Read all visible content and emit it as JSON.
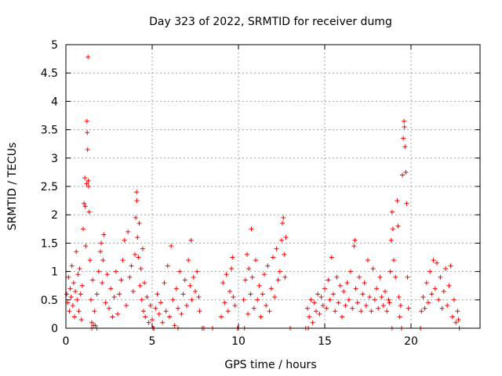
{
  "chart_data": {
    "type": "scatter",
    "title": "Day 323 of 2022, SRMTID for receiver dumg",
    "xlabel": "GPS time / hours",
    "ylabel": "SRMTID / TECUs",
    "xlim": [
      0,
      24
    ],
    "ylim": [
      0,
      5
    ],
    "x_ticks": [
      0,
      5,
      10,
      15,
      20
    ],
    "y_ticks": [
      0,
      0.5,
      1,
      1.5,
      2,
      2.5,
      3,
      3.5,
      4,
      4.5,
      5
    ],
    "grid": true,
    "marker": "plus",
    "point_color": "#ff0000",
    "series": [
      {
        "points": [
          [
            0.05,
            0.6
          ],
          [
            0.1,
            0.45
          ],
          [
            0.15,
            0.9
          ],
          [
            0.2,
            0.3
          ],
          [
            0.25,
            0.7
          ],
          [
            0.3,
            0.55
          ],
          [
            0.35,
            1.1
          ],
          [
            0.4,
            0.4
          ],
          [
            0.45,
            0.8
          ],
          [
            0.5,
            0.2
          ],
          [
            0.55,
            0.65
          ],
          [
            0.6,
            1.35
          ],
          [
            0.65,
            0.5
          ],
          [
            0.7,
            0.95
          ],
          [
            0.75,
            0.3
          ],
          [
            0.8,
            1.05
          ],
          [
            0.85,
            0.6
          ],
          [
            0.9,
            0.15
          ],
          [
            0.95,
            0.75
          ],
          [
            1.0,
            1.75
          ],
          [
            1.05,
            2.2
          ],
          [
            1.1,
            2.65
          ],
          [
            1.12,
            2.15
          ],
          [
            1.15,
            1.45
          ],
          [
            1.2,
            2.55
          ],
          [
            1.22,
            3.65
          ],
          [
            1.24,
            3.45
          ],
          [
            1.26,
            3.15
          ],
          [
            1.28,
            4.78
          ],
          [
            1.3,
            2.6
          ],
          [
            1.32,
            2.5
          ],
          [
            1.35,
            2.05
          ],
          [
            1.4,
            1.2
          ],
          [
            1.45,
            0.5
          ],
          [
            1.5,
            0.1
          ],
          [
            1.55,
            0.85
          ],
          [
            1.6,
            0.05
          ],
          [
            1.65,
            0.3
          ],
          [
            1.7,
            0.05
          ],
          [
            1.8,
            0.6
          ],
          [
            1.9,
            1.0
          ],
          [
            2.0,
            1.35
          ],
          [
            2.05,
            1.5
          ],
          [
            2.1,
            0.8
          ],
          [
            2.15,
            1.2
          ],
          [
            2.2,
            1.65
          ],
          [
            2.3,
            0.45
          ],
          [
            2.4,
            0.95
          ],
          [
            2.5,
            0.35
          ],
          [
            2.6,
            0.7
          ],
          [
            2.7,
            0.2
          ],
          [
            2.8,
            0.55
          ],
          [
            2.9,
            1.0
          ],
          [
            3.0,
            0.25
          ],
          [
            3.1,
            0.6
          ],
          [
            3.2,
            0.85
          ],
          [
            3.3,
            1.2
          ],
          [
            3.4,
            1.55
          ],
          [
            3.5,
            0.4
          ],
          [
            3.6,
            1.7
          ],
          [
            3.7,
            0.9
          ],
          [
            3.8,
            1.1
          ],
          [
            3.9,
            0.65
          ],
          [
            4.0,
            1.3
          ],
          [
            4.05,
            1.95
          ],
          [
            4.1,
            2.4
          ],
          [
            4.12,
            2.25
          ],
          [
            4.15,
            1.6
          ],
          [
            4.2,
            1.25
          ],
          [
            4.25,
            1.85
          ],
          [
            4.3,
            0.75
          ],
          [
            4.35,
            1.05
          ],
          [
            4.4,
            0.5
          ],
          [
            4.45,
            1.4
          ],
          [
            4.5,
            0.3
          ],
          [
            4.55,
            0.8
          ],
          [
            4.6,
            0.2
          ],
          [
            4.7,
            0.55
          ],
          [
            4.8,
            0.1
          ],
          [
            4.9,
            0.4
          ],
          [
            5.0,
            0.15
          ],
          [
            5.1,
            0.0
          ],
          [
            5.2,
            0.35
          ],
          [
            5.3,
            0.6
          ],
          [
            5.4,
            0.25
          ],
          [
            5.5,
            0.45
          ],
          [
            5.6,
            0.1
          ],
          [
            5.7,
            0.8
          ],
          [
            5.8,
            0.3
          ],
          [
            5.9,
            1.1
          ],
          [
            6.0,
            0.2
          ],
          [
            6.1,
            1.45
          ],
          [
            6.2,
            0.5
          ],
          [
            6.3,
            0.05
          ],
          [
            6.4,
            0.7
          ],
          [
            6.5,
            0.35
          ],
          [
            6.6,
            1.0
          ],
          [
            6.7,
            0.25
          ],
          [
            6.8,
            0.6
          ],
          [
            6.9,
            0.85
          ],
          [
            7.0,
            0.4
          ],
          [
            7.1,
            1.2
          ],
          [
            7.2,
            0.75
          ],
          [
            7.25,
            1.55
          ],
          [
            7.3,
            0.5
          ],
          [
            7.4,
            0.9
          ],
          [
            7.5,
            0.65
          ],
          [
            7.6,
            1.0
          ],
          [
            7.7,
            0.55
          ],
          [
            7.75,
            0.3
          ],
          [
            9.0,
            0.2
          ],
          [
            9.1,
            0.8
          ],
          [
            9.2,
            0.45
          ],
          [
            9.3,
            0.95
          ],
          [
            9.4,
            0.3
          ],
          [
            9.5,
            0.65
          ],
          [
            9.6,
            1.05
          ],
          [
            9.65,
            1.25
          ],
          [
            9.7,
            0.55
          ],
          [
            9.8,
            0.4
          ],
          [
            10.3,
            0.5
          ],
          [
            10.4,
            0.85
          ],
          [
            10.5,
            1.3
          ],
          [
            10.55,
            0.25
          ],
          [
            10.6,
            1.05
          ],
          [
            10.7,
            0.6
          ],
          [
            10.75,
            1.75
          ],
          [
            10.8,
            0.9
          ],
          [
            10.9,
            0.35
          ],
          [
            11.0,
            1.2
          ],
          [
            11.1,
            0.5
          ],
          [
            11.2,
            0.75
          ],
          [
            11.3,
            0.2
          ],
          [
            11.4,
            0.6
          ],
          [
            11.5,
            0.95
          ],
          [
            11.6,
            0.4
          ],
          [
            11.7,
            1.1
          ],
          [
            11.8,
            0.3
          ],
          [
            11.9,
            0.7
          ],
          [
            12.0,
            1.25
          ],
          [
            12.1,
            0.55
          ],
          [
            12.2,
            1.4
          ],
          [
            12.3,
            0.85
          ],
          [
            12.4,
            1.0
          ],
          [
            12.5,
            1.55
          ],
          [
            12.55,
            1.85
          ],
          [
            12.6,
            1.95
          ],
          [
            12.65,
            1.3
          ],
          [
            12.7,
            0.9
          ],
          [
            12.75,
            1.6
          ],
          [
            14.0,
            0.35
          ],
          [
            14.1,
            0.2
          ],
          [
            14.2,
            0.5
          ],
          [
            14.3,
            0.1
          ],
          [
            14.4,
            0.45
          ],
          [
            14.5,
            0.3
          ],
          [
            14.6,
            0.6
          ],
          [
            14.7,
            0.25
          ],
          [
            14.8,
            0.55
          ],
          [
            14.9,
            0.4
          ],
          [
            15.0,
            0.7
          ],
          [
            15.1,
            0.35
          ],
          [
            15.2,
            0.85
          ],
          [
            15.3,
            0.5
          ],
          [
            15.4,
            1.25
          ],
          [
            15.5,
            0.6
          ],
          [
            15.6,
            0.3
          ],
          [
            15.7,
            0.9
          ],
          [
            15.8,
            0.45
          ],
          [
            15.9,
            0.75
          ],
          [
            16.0,
            0.2
          ],
          [
            16.1,
            0.65
          ],
          [
            16.2,
            0.4
          ],
          [
            16.3,
            0.8
          ],
          [
            16.4,
            0.5
          ],
          [
            16.5,
            1.0
          ],
          [
            16.6,
            0.35
          ],
          [
            16.7,
            1.45
          ],
          [
            16.75,
            1.55
          ],
          [
            16.8,
            0.7
          ],
          [
            16.9,
            0.45
          ],
          [
            17.0,
            0.9
          ],
          [
            17.1,
            0.3
          ],
          [
            17.2,
            0.6
          ],
          [
            17.3,
            0.8
          ],
          [
            17.4,
            0.4
          ],
          [
            17.5,
            1.2
          ],
          [
            17.6,
            0.55
          ],
          [
            17.7,
            0.3
          ],
          [
            17.8,
            1.05
          ],
          [
            17.9,
            0.5
          ],
          [
            18.0,
            0.7
          ],
          [
            18.1,
            0.35
          ],
          [
            18.2,
            0.9
          ],
          [
            18.3,
            0.55
          ],
          [
            18.4,
            0.4
          ],
          [
            18.5,
            0.65
          ],
          [
            18.6,
            0.3
          ],
          [
            18.7,
            0.5
          ],
          [
            18.75,
            0.45
          ],
          [
            18.8,
            1.0
          ],
          [
            18.85,
            1.55
          ],
          [
            18.9,
            2.05
          ],
          [
            18.95,
            1.75
          ],
          [
            19.0,
            1.2
          ],
          [
            19.1,
            0.9
          ],
          [
            19.2,
            2.25
          ],
          [
            19.25,
            1.8
          ],
          [
            19.3,
            0.55
          ],
          [
            19.35,
            0.2
          ],
          [
            19.4,
            0.4
          ],
          [
            19.5,
            2.7
          ],
          [
            19.55,
            3.35
          ],
          [
            19.6,
            3.65
          ],
          [
            19.62,
            3.55
          ],
          [
            19.65,
            3.2
          ],
          [
            19.7,
            2.75
          ],
          [
            19.75,
            2.2
          ],
          [
            19.8,
            0.9
          ],
          [
            19.85,
            0.35
          ],
          [
            20.6,
            0.3
          ],
          [
            20.7,
            0.55
          ],
          [
            20.8,
            0.35
          ],
          [
            20.9,
            0.8
          ],
          [
            21.0,
            0.45
          ],
          [
            21.1,
            1.0
          ],
          [
            21.2,
            0.6
          ],
          [
            21.3,
            1.2
          ],
          [
            21.4,
            0.7
          ],
          [
            21.5,
            1.15
          ],
          [
            21.6,
            0.5
          ],
          [
            21.7,
            0.9
          ],
          [
            21.8,
            0.35
          ],
          [
            21.9,
            0.65
          ],
          [
            22.0,
            1.05
          ],
          [
            22.1,
            0.4
          ],
          [
            22.2,
            0.75
          ],
          [
            22.3,
            1.1
          ],
          [
            22.4,
            0.2
          ],
          [
            22.5,
            0.5
          ],
          [
            22.6,
            0.1
          ],
          [
            22.7,
            0.3
          ],
          [
            22.75,
            0.15
          ],
          [
            22.8,
            0.0
          ],
          [
            8.0,
            0.0
          ],
          [
            8.5,
            0.0
          ],
          [
            10.0,
            0.0
          ],
          [
            13.0,
            0.0
          ],
          [
            13.9,
            0.0
          ],
          [
            14.05,
            0.0
          ],
          [
            18.9,
            0.0
          ],
          [
            19.45,
            0.0
          ],
          [
            20.55,
            0.0
          ],
          [
            6.5,
            0.0
          ],
          [
            5.05,
            0.0
          ],
          [
            1.5,
            0.0
          ],
          [
            1.8,
            0.0
          ],
          [
            7.9,
            0.0
          ],
          [
            9.95,
            0.0
          ],
          [
            10.35,
            0.0
          ]
        ]
      }
    ]
  }
}
